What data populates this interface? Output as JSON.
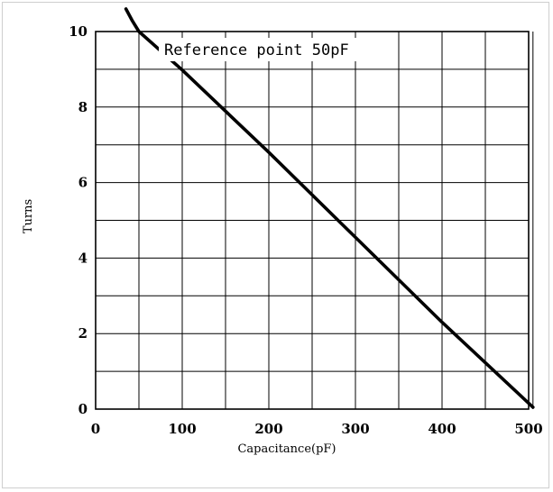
{
  "chart_data": {
    "type": "line",
    "title": "",
    "xlabel": "Capacitance(pF)",
    "ylabel": "Turns",
    "xlim": [
      0,
      500
    ],
    "ylim": [
      0,
      10
    ],
    "x_ticks": [
      0,
      100,
      200,
      300,
      400,
      500
    ],
    "y_ticks": [
      0,
      2,
      4,
      6,
      8,
      10
    ],
    "grid": true,
    "annotation": "Reference point 50pF",
    "series": [
      {
        "color": "#000000",
        "points": [
          [
            35,
            10.6
          ],
          [
            42,
            10.3
          ],
          [
            50,
            10.0
          ],
          [
            100,
            8.98
          ],
          [
            200,
            6.8
          ],
          [
            300,
            4.55
          ],
          [
            400,
            2.3
          ],
          [
            505,
            0.05
          ]
        ]
      }
    ]
  }
}
